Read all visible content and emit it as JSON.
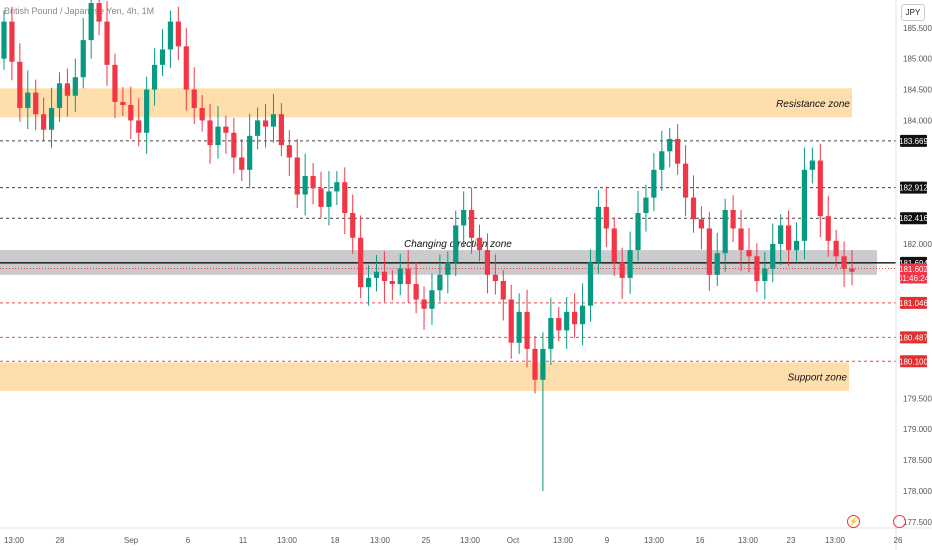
{
  "header": {
    "title": "British Pound / Japanese Yen, 4h, 1M",
    "currency": "JPY"
  },
  "colors": {
    "up": "#089981",
    "down": "#f23645",
    "zone": "#ffd699",
    "grey_zone": "#c2c2c4"
  },
  "chart_data": {
    "type": "candlestick",
    "y_range": [
      177.4,
      185.95
    ],
    "y_ticks": [
      {
        "value": 185.5,
        "label": "185.500"
      },
      {
        "value": 185.0,
        "label": "185.000"
      },
      {
        "value": 184.5,
        "label": "184.500"
      },
      {
        "value": 184.0,
        "label": "184.000"
      },
      {
        "value": 182.0,
        "label": "182.000"
      },
      {
        "value": 179.5,
        "label": "179.500"
      },
      {
        "value": 179.0,
        "label": "179.000"
      },
      {
        "value": 178.5,
        "label": "178.500"
      },
      {
        "value": 178.0,
        "label": "178.000"
      },
      {
        "value": 177.5,
        "label": "177.500"
      }
    ],
    "x_ticks": [
      "13:00",
      "28",
      "Sep",
      "6",
      "11",
      "13:00",
      "18",
      "13:00",
      "25",
      "13:00",
      "Oct",
      "13:00",
      "9",
      "13:00",
      "16",
      "13:00",
      "23",
      "13:00",
      "26"
    ],
    "zones": [
      {
        "label": "Resistance zone",
        "low": 184.05,
        "high": 184.52
      },
      {
        "label": "Changing direction zone",
        "low": 181.5,
        "high": 181.9
      },
      {
        "label": "Support zone",
        "low": 179.62,
        "high": 180.08
      }
    ],
    "levels": [
      {
        "value": 183.669,
        "label": "183.669",
        "style": "dashed",
        "color": "#222222"
      },
      {
        "value": 182.912,
        "label": "182.912",
        "style": "dashed",
        "color": "#222222"
      },
      {
        "value": 182.416,
        "label": "182.416",
        "style": "dashed",
        "color": "#222222"
      },
      {
        "value": 181.694,
        "label": "181.694",
        "style": "solid",
        "color": "#111111"
      },
      {
        "value": 181.046,
        "label": "181.046",
        "style": "dashed",
        "color": "#e03030"
      },
      {
        "value": 180.487,
        "label": "180.487",
        "style": "dashed",
        "color": "#e03030"
      },
      {
        "value": 180.1,
        "label": "180.100",
        "style": "dashed",
        "color": "#e03030"
      }
    ],
    "last_price": {
      "value": 181.602,
      "label": "181.602",
      "countdown": "01:46:24"
    },
    "series_close": [
      185.6,
      184.95,
      184.2,
      184.45,
      184.1,
      183.85,
      184.2,
      184.6,
      184.4,
      184.7,
      185.3,
      185.9,
      185.6,
      184.9,
      184.3,
      184.25,
      184.0,
      183.8,
      184.5,
      184.9,
      185.15,
      185.6,
      185.2,
      184.5,
      184.2,
      184.0,
      183.6,
      183.9,
      183.8,
      183.4,
      183.2,
      183.75,
      184.0,
      183.9,
      184.1,
      183.6,
      183.4,
      182.8,
      183.1,
      182.9,
      182.6,
      182.85,
      183.0,
      182.5,
      182.1,
      181.3,
      181.45,
      181.55,
      181.4,
      181.35,
      181.6,
      181.35,
      181.1,
      180.95,
      181.25,
      181.5,
      181.7,
      182.3,
      182.55,
      182.1,
      181.9,
      181.5,
      181.4,
      181.1,
      180.4,
      180.9,
      180.3,
      179.8,
      180.3,
      180.8,
      180.6,
      180.9,
      180.7,
      181.0,
      181.7,
      182.6,
      182.25,
      181.7,
      181.45,
      181.9,
      182.5,
      182.75,
      183.2,
      183.5,
      183.7,
      183.3,
      182.75,
      182.4,
      182.25,
      181.5,
      181.85,
      182.55,
      182.25,
      181.9,
      181.8,
      181.4,
      181.6,
      182.0,
      182.3,
      181.9,
      182.05,
      183.2,
      183.35,
      182.45,
      182.05,
      181.8,
      181.6,
      181.55
    ]
  }
}
